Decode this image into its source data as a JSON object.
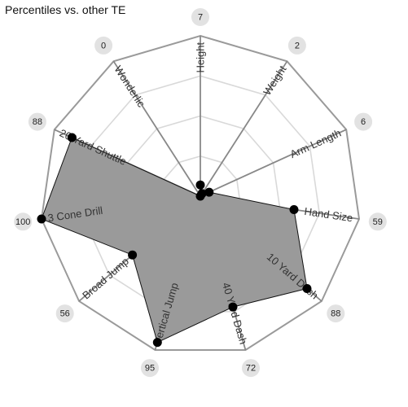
{
  "chart_data": {
    "type": "radar",
    "title": "Percentiles vs. other TE",
    "rmax": 100,
    "grid": true,
    "axes": [
      "Height",
      "Weight",
      "Arm Length",
      "Hand Size",
      "10 Yard Dash",
      "40 Yard Dash",
      "Vertical Jump",
      "Broad Jump",
      "3 Cone Drill",
      "20 Yard Shuttle",
      "Wonderlic"
    ],
    "values": [
      7,
      2,
      6,
      59,
      88,
      72,
      95,
      56,
      100,
      88,
      0
    ],
    "colors": {
      "fill": "#9a9a9a",
      "outline": "#111111",
      "point": "#000000",
      "grid": "#d9d9d9",
      "frame": "#9a9a9a",
      "spoke": "#888888",
      "bubble": "#e2e2e2"
    }
  }
}
